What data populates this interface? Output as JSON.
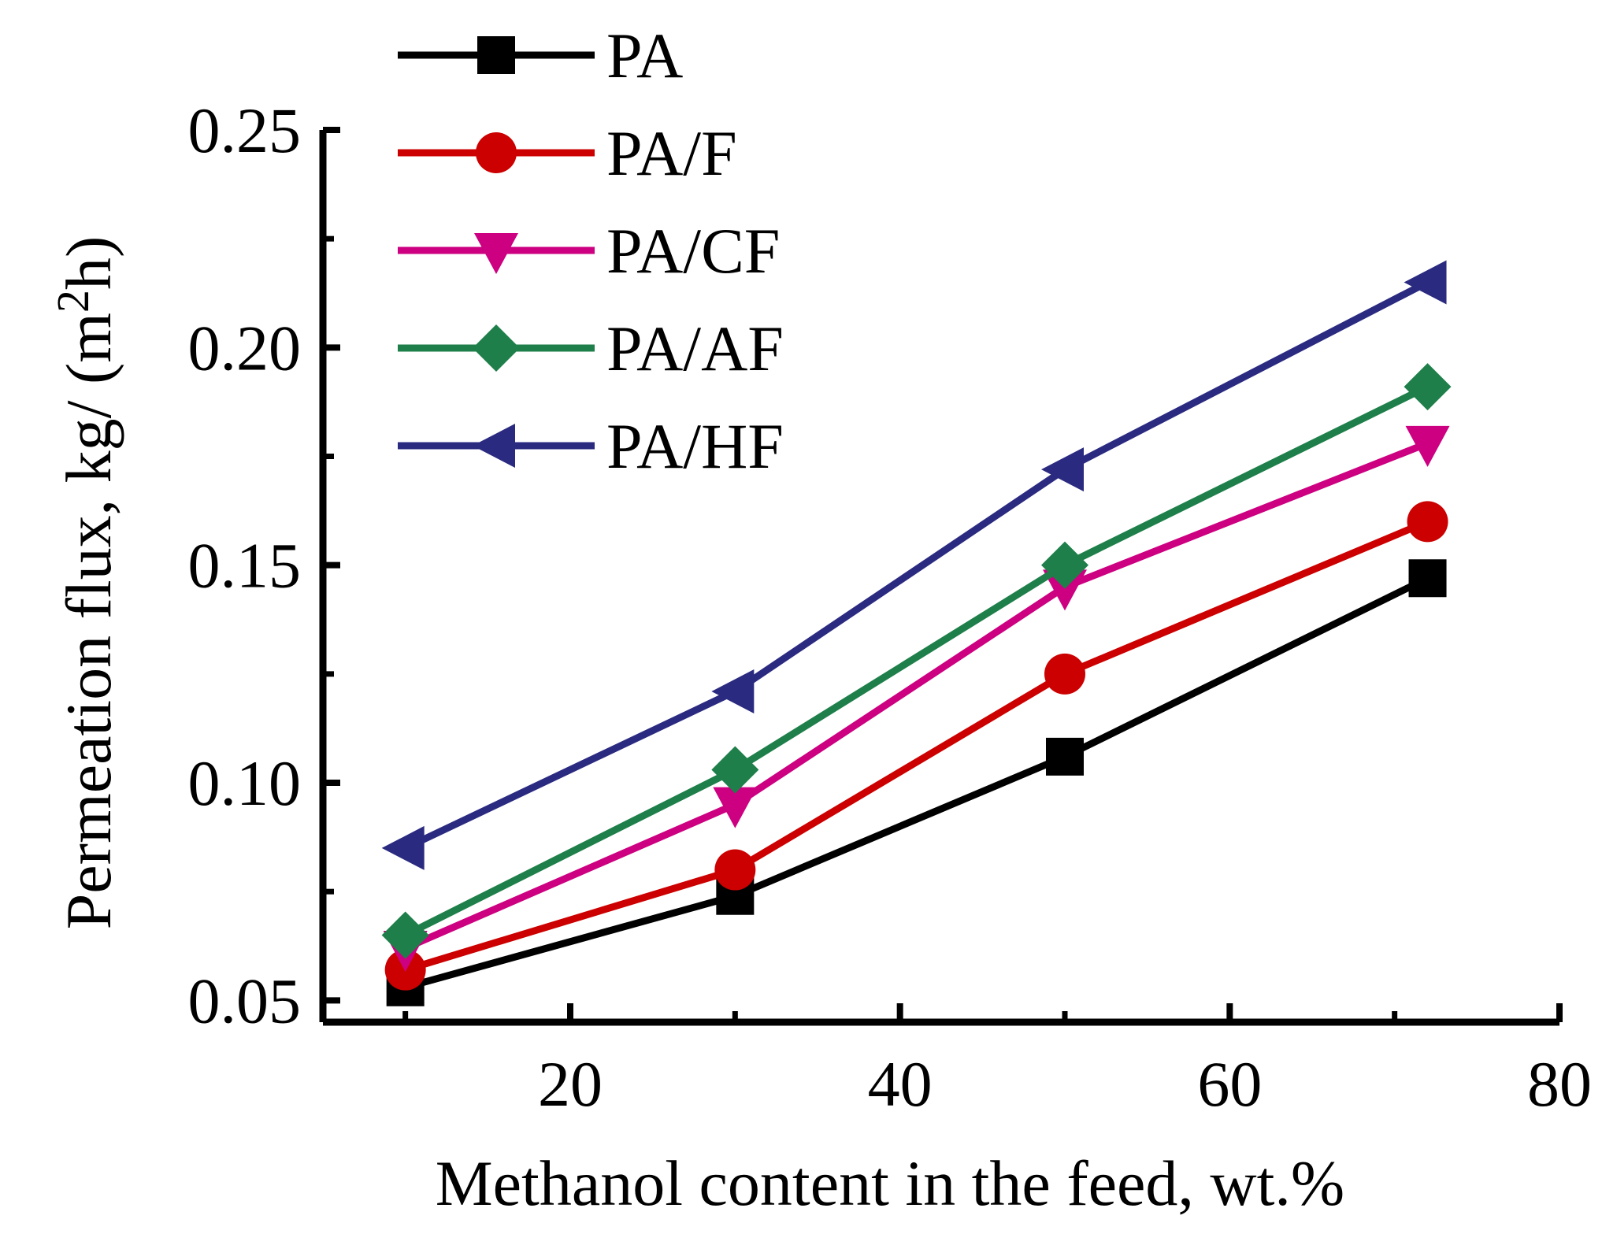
{
  "chart_data": {
    "type": "line",
    "title": "",
    "xlabel": "Methanol content in the feed, wt.%",
    "ylabel_main": "Permeation flux, kg/ (m",
    "ylabel_sup": "2",
    "ylabel_end": "h)",
    "xlim": [
      5,
      80
    ],
    "ylim": [
      0.045,
      0.25
    ],
    "xticks": [
      20,
      40,
      60,
      80
    ],
    "xtick_labels": [
      "20",
      "40",
      "60",
      "80"
    ],
    "yticks": [
      0.05,
      0.1,
      0.15,
      0.2,
      0.25
    ],
    "ytick_labels": [
      "0.05",
      "0.10",
      "0.15",
      "0.20",
      "0.25"
    ],
    "x": [
      10,
      30,
      50,
      72
    ],
    "series": [
      {
        "name": "PA",
        "marker": "square",
        "color": "#000000",
        "values": [
          0.053,
          0.074,
          0.106,
          0.147
        ]
      },
      {
        "name": "PA/F",
        "marker": "circle",
        "color": "#cc0000",
        "values": [
          0.057,
          0.08,
          0.125,
          0.16
        ]
      },
      {
        "name": "PA/CF",
        "marker": "triangle-down",
        "color": "#cc0080",
        "values": [
          0.062,
          0.095,
          0.145,
          0.178
        ]
      },
      {
        "name": "PA/AF",
        "marker": "diamond",
        "color": "#1e7f4a",
        "values": [
          0.065,
          0.103,
          0.15,
          0.191
        ]
      },
      {
        "name": "PA/HF",
        "marker": "triangle-left",
        "color": "#2a2a80",
        "values": [
          0.085,
          0.121,
          0.172,
          0.215
        ]
      }
    ],
    "legend_location": "top-left"
  }
}
